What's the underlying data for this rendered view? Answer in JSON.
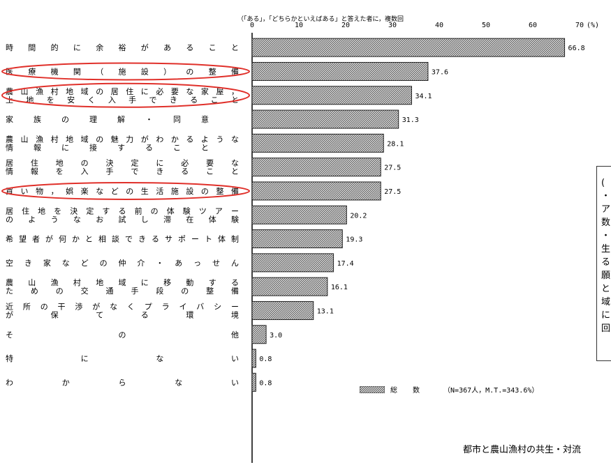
{
  "header_note": "（「ある」，「どちらかといえばある」と答えた者に，複数回",
  "chart_data": {
    "type": "bar",
    "orientation": "horizontal",
    "categories": [
      "時間的に余裕があること",
      "医療機関（施設）の整備",
      "農山漁村地域の居住に必要な家屋，土地を安く入手できること",
      "家族の理解・同意",
      "農山漁村地域の魅力がわかるような情報に接すること",
      "居住地の決定に必要な情報を入手できること",
      "買い物，娯楽などの生活施設の整備",
      "居住地を決定する前の体験ツアーのようなお試し滞在体験",
      "希望者が何かと相談できるサポート体制",
      "空き家などの仲介・あっせん",
      "農山漁村地域に移動するための交通手段の整備",
      "近所の干渉がなくプライバシーが保てる環境",
      "その他",
      "特にない",
      "わからない"
    ],
    "category_lines": [
      [
        "時間的に余裕があること"
      ],
      [
        "医療機関（施設）の整備"
      ],
      [
        "農山漁村地域の居住に必要な家屋，",
        "土地を安く入手できること"
      ],
      [
        "家族の理解・同意"
      ],
      [
        "農山漁村地域の魅力がわかるような",
        "情報に接すること"
      ],
      [
        "居住地の決定に必要な",
        "情報を入手できること"
      ],
      [
        "買い物，娯楽などの生活施設の整備"
      ],
      [
        "居住地を決定する前の体験ツアー",
        "のようなお試し滞在体験"
      ],
      [
        "希望者が何かと相談できるサポート体制"
      ],
      [
        "空き家などの仲介・あっせん"
      ],
      [
        "農山漁村地域に移動する",
        "ための交通手段の整備"
      ],
      [
        "近所の干渉がなくプライバシー",
        "が保てる環境"
      ],
      [
        "その他"
      ],
      [
        "特にない"
      ],
      [
        "わからない"
      ]
    ],
    "series": [
      {
        "name": "総数",
        "values": [
          66.8,
          37.6,
          34.1,
          31.3,
          28.1,
          27.5,
          27.5,
          20.2,
          19.3,
          17.4,
          16.1,
          13.1,
          3.0,
          0.8,
          0.8
        ]
      }
    ],
    "value_labels": [
      "66.8",
      "37.6",
      "34.1",
      "31.3",
      "28.1",
      "27.5",
      "27.5",
      "20.2",
      "19.3",
      "17.4",
      "16.1",
      "13.1",
      "3.0",
      "0.8",
      "0.8"
    ],
    "xlim": [
      0,
      70
    ],
    "x_ticks": [
      "0",
      "10",
      "20",
      "30",
      "40",
      "50",
      "60",
      "70"
    ],
    "unit_label": "(%)",
    "highlighted_categories": [
      1,
      2,
      6
    ],
    "highlight_color": "#e0302a",
    "bar_color": "#8a8a8a",
    "legend_name": "総 数",
    "legend_note": "（N=367人，M.T.=343.6%）",
    "grid": false
  },
  "side_box_lines": [
    "(",
    "・",
    "ア",
    "数",
    "・",
    "生",
    "る",
    "願",
    "と",
    "域",
    "に",
    "回"
  ],
  "source_text": "都市と農山漁村の共生・対流"
}
